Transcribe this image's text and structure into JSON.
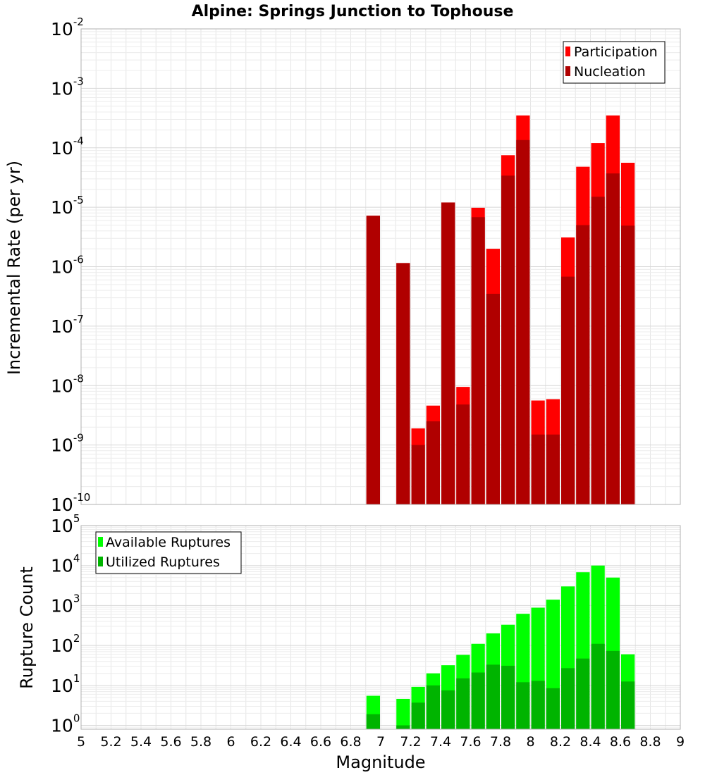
{
  "chart_data": [
    {
      "type": "bar",
      "title": "Alpine: Springs Junction to Tophouse",
      "xlabel": "",
      "ylabel": "Incremental Rate (per yr)",
      "yscale": "log",
      "xlim": [
        5,
        9
      ],
      "ylim": [
        1e-10,
        0.01
      ],
      "y_ticks": [
        {
          "base": "10",
          "exp": "-10",
          "value": 1e-10
        },
        {
          "base": "10",
          "exp": "-9",
          "value": 1e-09
        },
        {
          "base": "10",
          "exp": "-8",
          "value": 1e-08
        },
        {
          "base": "10",
          "exp": "-7",
          "value": 1e-07
        },
        {
          "base": "10",
          "exp": "-6",
          "value": 1e-06
        },
        {
          "base": "10",
          "exp": "-5",
          "value": 1e-05
        },
        {
          "base": "10",
          "exp": "-4",
          "value": 0.0001
        },
        {
          "base": "10",
          "exp": "-3",
          "value": 0.001
        },
        {
          "base": "10",
          "exp": "-2",
          "value": 0.01
        }
      ],
      "grid": true,
      "legend_position": "top-right",
      "bar_width": 0.1,
      "series": [
        {
          "name": "Participation",
          "color": "#ff0000",
          "x": [
            6.95,
            7.15,
            7.25,
            7.35,
            7.45,
            7.55,
            7.65,
            7.75,
            7.85,
            7.95,
            8.05,
            8.15,
            8.25,
            8.35,
            8.45,
            8.55,
            8.65
          ],
          "values": [
            7.2e-06,
            1.15e-06,
            1.9e-09,
            4.6e-09,
            1.2e-05,
            9.5e-09,
            9.8e-06,
            2e-06,
            7.5e-05,
            0.00035,
            5.6e-09,
            5.9e-09,
            3.1e-06,
            4.8e-05,
            0.00012,
            0.00035,
            5.6e-05
          ]
        },
        {
          "name": "Nucleation",
          "color": "#b00000",
          "x": [
            6.95,
            7.15,
            7.25,
            7.35,
            7.45,
            7.55,
            7.65,
            7.75,
            7.85,
            7.95,
            8.05,
            8.15,
            8.25,
            8.35,
            8.45,
            8.55,
            8.65
          ],
          "values": [
            7.2e-06,
            1.15e-06,
            1e-09,
            2.5e-09,
            1.2e-05,
            4.8e-09,
            6.8e-06,
            3.5e-07,
            3.4e-05,
            0.000135,
            1.5e-09,
            1.5e-09,
            6.8e-07,
            5e-06,
            1.5e-05,
            3.7e-05,
            4.9e-06
          ]
        }
      ]
    },
    {
      "type": "bar",
      "title": "",
      "xlabel": "Magnitude",
      "ylabel": "Rupture Count",
      "yscale": "log",
      "xlim": [
        5,
        9
      ],
      "ylim": [
        0.8,
        100000.0
      ],
      "y_ticks": [
        {
          "base": "10",
          "exp": "0",
          "value": 1
        },
        {
          "base": "10",
          "exp": "1",
          "value": 10
        },
        {
          "base": "10",
          "exp": "2",
          "value": 100
        },
        {
          "base": "10",
          "exp": "3",
          "value": 1000
        },
        {
          "base": "10",
          "exp": "4",
          "value": 10000
        },
        {
          "base": "10",
          "exp": "5",
          "value": 100000
        }
      ],
      "x_tick_labels": [
        "5",
        "5.2",
        "5.4",
        "5.6",
        "5.8",
        "6",
        "6.2",
        "6.4",
        "6.6",
        "6.8",
        "7",
        "7.2",
        "7.4",
        "7.6",
        "7.8",
        "8",
        "8.2",
        "8.4",
        "8.6",
        "8.8",
        "9"
      ],
      "grid": true,
      "legend_position": "top-left",
      "bar_width": 0.1,
      "series": [
        {
          "name": "Available Ruptures",
          "color": "#00ff00",
          "x": [
            6.95,
            7.15,
            7.25,
            7.35,
            7.45,
            7.55,
            7.65,
            7.75,
            7.85,
            7.95,
            8.05,
            8.15,
            8.25,
            8.35,
            8.45,
            8.55,
            8.65
          ],
          "values": [
            5.5,
            4.6,
            9.2,
            20,
            32,
            58,
            110,
            200,
            330,
            620,
            880,
            1400,
            3000,
            6800,
            10000,
            5000,
            60
          ]
        },
        {
          "name": "Utilized Ruptures",
          "color": "#00b400",
          "x": [
            6.95,
            7.15,
            7.25,
            7.35,
            7.45,
            7.55,
            7.65,
            7.75,
            7.85,
            7.95,
            8.05,
            8.15,
            8.25,
            8.35,
            8.45,
            8.55,
            8.65
          ],
          "values": [
            1.9,
            1.0,
            3.7,
            10,
            7.5,
            15,
            21,
            33,
            31,
            12,
            13,
            8.5,
            27,
            47,
            110,
            73,
            12.5
          ]
        }
      ]
    }
  ]
}
